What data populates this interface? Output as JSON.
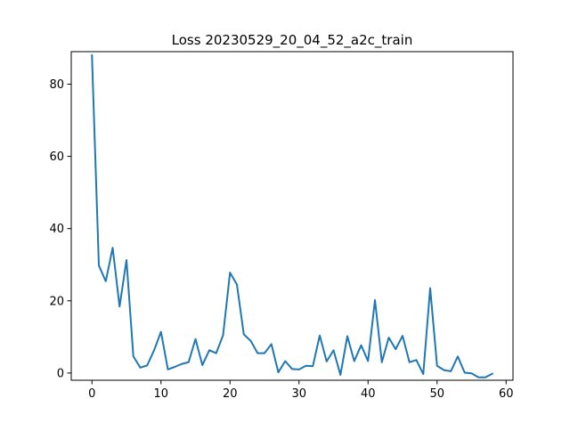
{
  "chart_data": {
    "type": "line",
    "title": "Loss 20230529_20_04_52_a2c_train",
    "xlabel": "",
    "ylabel": "",
    "xlim": [
      -3,
      61
    ],
    "ylim": [
      -2,
      89
    ],
    "x_ticks": [
      0,
      10,
      20,
      30,
      40,
      50,
      60
    ],
    "y_ticks": [
      0,
      20,
      40,
      60,
      80
    ],
    "grid": false,
    "series": [
      {
        "color": "#1f77b4",
        "x": [
          0,
          1,
          2,
          3,
          4,
          5,
          6,
          7,
          8,
          9,
          10,
          11,
          12,
          13,
          14,
          15,
          16,
          17,
          18,
          19,
          20,
          21,
          22,
          23,
          24,
          25,
          26,
          27,
          28,
          29,
          30,
          31,
          32,
          33,
          34,
          35,
          36,
          37,
          38,
          39,
          40,
          41,
          42,
          43,
          44,
          45,
          46,
          47,
          48,
          49,
          50,
          51,
          52,
          53,
          54,
          55,
          56,
          57,
          58
        ],
        "values": [
          88,
          29.8,
          25.4,
          34.7,
          18.4,
          31.3,
          4.6,
          1.5,
          2.1,
          6.3,
          11.4,
          1.0,
          1.7,
          2.5,
          3.0,
          9.4,
          2.2,
          6.3,
          5.5,
          10.5,
          27.8,
          24.5,
          10.7,
          8.9,
          5.5,
          5.5,
          8.0,
          0.2,
          3.3,
          1.1,
          1.0,
          2.0,
          1.9,
          10.4,
          3.2,
          6.3,
          -0.5,
          10.2,
          3.3,
          7.7,
          3.3,
          20.2,
          3.0,
          9.8,
          6.6,
          10.3,
          3.0,
          3.6,
          -0.3,
          23.5,
          2.0,
          0.8,
          0.5,
          4.6,
          0.1,
          -0.1,
          -1.2,
          -1.2,
          -0.2
        ]
      }
    ]
  }
}
